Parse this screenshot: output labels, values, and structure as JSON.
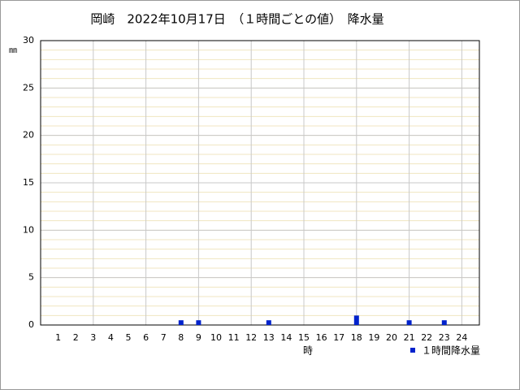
{
  "chart_data": {
    "type": "bar",
    "title": "岡崎　2022年10月17日　（１時間ごとの値）　降水量",
    "y_label": "㎜",
    "x_label": "時",
    "categories": [
      "1",
      "2",
      "3",
      "4",
      "5",
      "6",
      "7",
      "8",
      "9",
      "10",
      "11",
      "12",
      "13",
      "14",
      "15",
      "16",
      "17",
      "18",
      "19",
      "20",
      "21",
      "22",
      "23",
      "24"
    ],
    "series": [
      {
        "name": "１時間降水量",
        "color": "#0022cc",
        "values": [
          0,
          0,
          0,
          0,
          0,
          0,
          0,
          0.5,
          0.5,
          0,
          0,
          0,
          0.5,
          0,
          0,
          0,
          0,
          1.0,
          0,
          0,
          0.5,
          0,
          0.5,
          0
        ]
      }
    ],
    "ylim": [
      0,
      30
    ],
    "yticks": [
      0,
      5,
      10,
      15,
      20,
      25,
      30
    ],
    "grid": true
  }
}
